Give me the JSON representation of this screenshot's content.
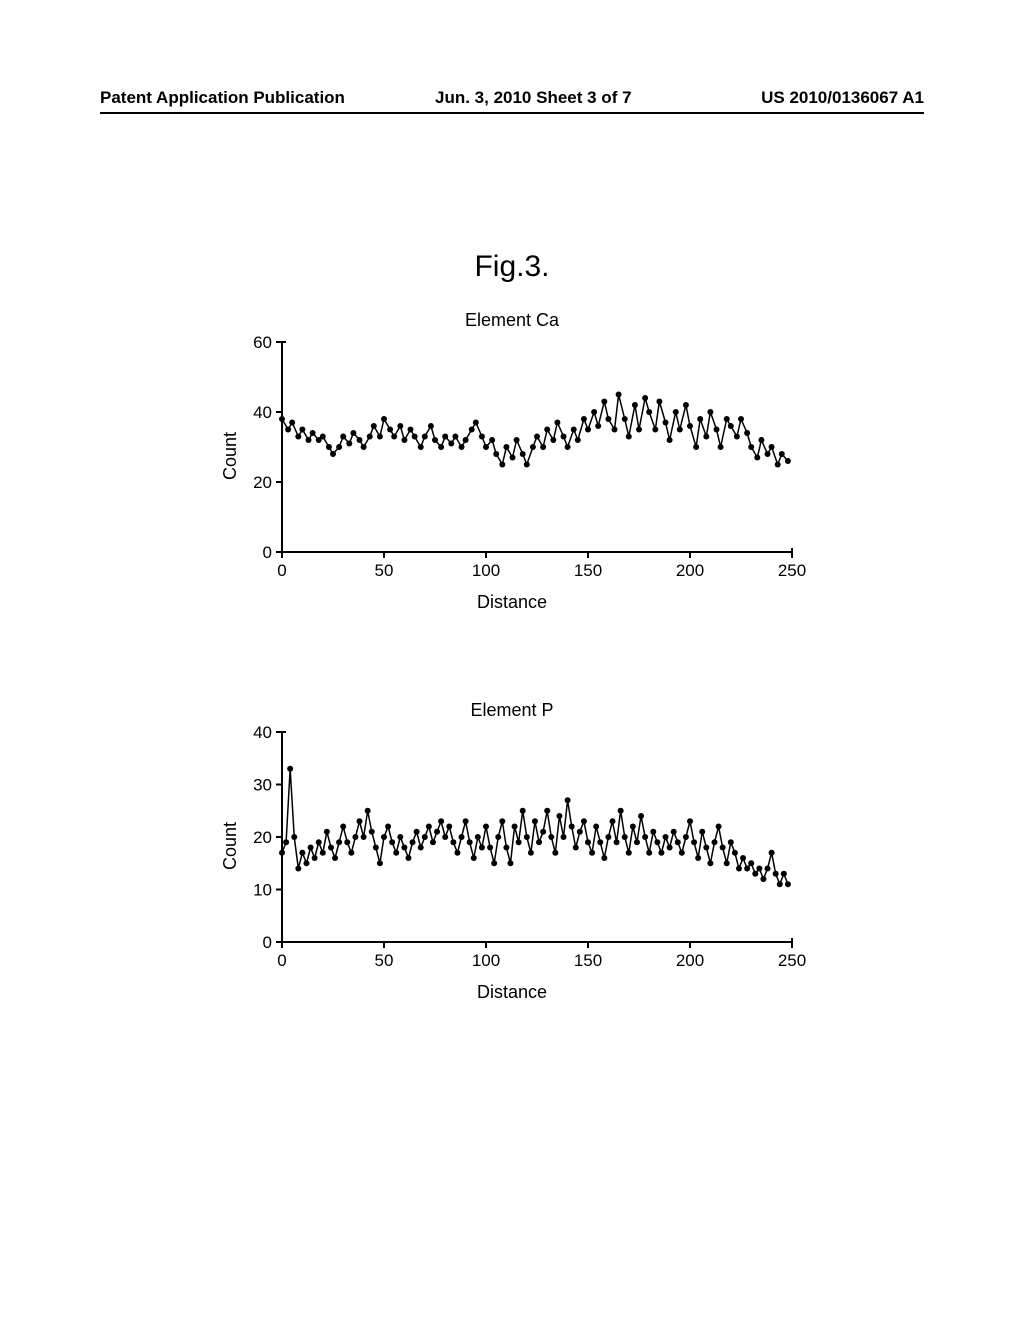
{
  "header": {
    "left": "Patent Application Publication",
    "center": "Jun. 3, 2010  Sheet 3 of 7",
    "right": "US 2010/0136067 A1"
  },
  "figure_label": "Fig.3.",
  "chart1": {
    "type": "line",
    "title": "Element Ca",
    "xlabel": "Distance",
    "ylabel": "Count",
    "xlim": [
      0,
      250
    ],
    "ylim": [
      0,
      60
    ],
    "xticks": [
      0,
      50,
      100,
      150,
      200,
      250
    ],
    "yticks": [
      0,
      20,
      40,
      60
    ],
    "line_color": "#000000",
    "marker_color": "#000000",
    "line_width": 1.5,
    "marker_size": 3,
    "background_color": "#ffffff",
    "axis_color": "#000000",
    "tick_fontsize": 17,
    "label_fontsize": 18,
    "title_fontsize": 18,
    "data": [
      {
        "x": 0,
        "y": 38
      },
      {
        "x": 3,
        "y": 35
      },
      {
        "x": 5,
        "y": 37
      },
      {
        "x": 8,
        "y": 33
      },
      {
        "x": 10,
        "y": 35
      },
      {
        "x": 13,
        "y": 32
      },
      {
        "x": 15,
        "y": 34
      },
      {
        "x": 18,
        "y": 32
      },
      {
        "x": 20,
        "y": 33
      },
      {
        "x": 23,
        "y": 30
      },
      {
        "x": 25,
        "y": 28
      },
      {
        "x": 28,
        "y": 30
      },
      {
        "x": 30,
        "y": 33
      },
      {
        "x": 33,
        "y": 31
      },
      {
        "x": 35,
        "y": 34
      },
      {
        "x": 38,
        "y": 32
      },
      {
        "x": 40,
        "y": 30
      },
      {
        "x": 43,
        "y": 33
      },
      {
        "x": 45,
        "y": 36
      },
      {
        "x": 48,
        "y": 33
      },
      {
        "x": 50,
        "y": 38
      },
      {
        "x": 53,
        "y": 35
      },
      {
        "x": 55,
        "y": 33
      },
      {
        "x": 58,
        "y": 36
      },
      {
        "x": 60,
        "y": 32
      },
      {
        "x": 63,
        "y": 35
      },
      {
        "x": 65,
        "y": 33
      },
      {
        "x": 68,
        "y": 30
      },
      {
        "x": 70,
        "y": 33
      },
      {
        "x": 73,
        "y": 36
      },
      {
        "x": 75,
        "y": 32
      },
      {
        "x": 78,
        "y": 30
      },
      {
        "x": 80,
        "y": 33
      },
      {
        "x": 83,
        "y": 31
      },
      {
        "x": 85,
        "y": 33
      },
      {
        "x": 88,
        "y": 30
      },
      {
        "x": 90,
        "y": 32
      },
      {
        "x": 93,
        "y": 35
      },
      {
        "x": 95,
        "y": 37
      },
      {
        "x": 98,
        "y": 33
      },
      {
        "x": 100,
        "y": 30
      },
      {
        "x": 103,
        "y": 32
      },
      {
        "x": 105,
        "y": 28
      },
      {
        "x": 108,
        "y": 25
      },
      {
        "x": 110,
        "y": 30
      },
      {
        "x": 113,
        "y": 27
      },
      {
        "x": 115,
        "y": 32
      },
      {
        "x": 118,
        "y": 28
      },
      {
        "x": 120,
        "y": 25
      },
      {
        "x": 123,
        "y": 30
      },
      {
        "x": 125,
        "y": 33
      },
      {
        "x": 128,
        "y": 30
      },
      {
        "x": 130,
        "y": 35
      },
      {
        "x": 133,
        "y": 32
      },
      {
        "x": 135,
        "y": 37
      },
      {
        "x": 138,
        "y": 33
      },
      {
        "x": 140,
        "y": 30
      },
      {
        "x": 143,
        "y": 35
      },
      {
        "x": 145,
        "y": 32
      },
      {
        "x": 148,
        "y": 38
      },
      {
        "x": 150,
        "y": 35
      },
      {
        "x": 153,
        "y": 40
      },
      {
        "x": 155,
        "y": 36
      },
      {
        "x": 158,
        "y": 43
      },
      {
        "x": 160,
        "y": 38
      },
      {
        "x": 163,
        "y": 35
      },
      {
        "x": 165,
        "y": 45
      },
      {
        "x": 168,
        "y": 38
      },
      {
        "x": 170,
        "y": 33
      },
      {
        "x": 173,
        "y": 42
      },
      {
        "x": 175,
        "y": 35
      },
      {
        "x": 178,
        "y": 44
      },
      {
        "x": 180,
        "y": 40
      },
      {
        "x": 183,
        "y": 35
      },
      {
        "x": 185,
        "y": 43
      },
      {
        "x": 188,
        "y": 37
      },
      {
        "x": 190,
        "y": 32
      },
      {
        "x": 193,
        "y": 40
      },
      {
        "x": 195,
        "y": 35
      },
      {
        "x": 198,
        "y": 42
      },
      {
        "x": 200,
        "y": 36
      },
      {
        "x": 203,
        "y": 30
      },
      {
        "x": 205,
        "y": 38
      },
      {
        "x": 208,
        "y": 33
      },
      {
        "x": 210,
        "y": 40
      },
      {
        "x": 213,
        "y": 35
      },
      {
        "x": 215,
        "y": 30
      },
      {
        "x": 218,
        "y": 38
      },
      {
        "x": 220,
        "y": 36
      },
      {
        "x": 223,
        "y": 33
      },
      {
        "x": 225,
        "y": 38
      },
      {
        "x": 228,
        "y": 34
      },
      {
        "x": 230,
        "y": 30
      },
      {
        "x": 233,
        "y": 27
      },
      {
        "x": 235,
        "y": 32
      },
      {
        "x": 238,
        "y": 28
      },
      {
        "x": 240,
        "y": 30
      },
      {
        "x": 243,
        "y": 25
      },
      {
        "x": 245,
        "y": 28
      },
      {
        "x": 248,
        "y": 26
      }
    ]
  },
  "chart2": {
    "type": "line",
    "title": "Element P",
    "xlabel": "Distance",
    "ylabel": "Count",
    "xlim": [
      0,
      250
    ],
    "ylim": [
      0,
      40
    ],
    "xticks": [
      0,
      50,
      100,
      150,
      200,
      250
    ],
    "yticks": [
      0,
      10,
      20,
      30,
      40
    ],
    "line_color": "#000000",
    "marker_color": "#000000",
    "line_width": 1.5,
    "marker_size": 3,
    "background_color": "#ffffff",
    "axis_color": "#000000",
    "tick_fontsize": 17,
    "label_fontsize": 18,
    "title_fontsize": 18,
    "data": [
      {
        "x": 0,
        "y": 17
      },
      {
        "x": 2,
        "y": 19
      },
      {
        "x": 4,
        "y": 33
      },
      {
        "x": 6,
        "y": 20
      },
      {
        "x": 8,
        "y": 14
      },
      {
        "x": 10,
        "y": 17
      },
      {
        "x": 12,
        "y": 15
      },
      {
        "x": 14,
        "y": 18
      },
      {
        "x": 16,
        "y": 16
      },
      {
        "x": 18,
        "y": 19
      },
      {
        "x": 20,
        "y": 17
      },
      {
        "x": 22,
        "y": 21
      },
      {
        "x": 24,
        "y": 18
      },
      {
        "x": 26,
        "y": 16
      },
      {
        "x": 28,
        "y": 19
      },
      {
        "x": 30,
        "y": 22
      },
      {
        "x": 32,
        "y": 19
      },
      {
        "x": 34,
        "y": 17
      },
      {
        "x": 36,
        "y": 20
      },
      {
        "x": 38,
        "y": 23
      },
      {
        "x": 40,
        "y": 20
      },
      {
        "x": 42,
        "y": 25
      },
      {
        "x": 44,
        "y": 21
      },
      {
        "x": 46,
        "y": 18
      },
      {
        "x": 48,
        "y": 15
      },
      {
        "x": 50,
        "y": 20
      },
      {
        "x": 52,
        "y": 22
      },
      {
        "x": 54,
        "y": 19
      },
      {
        "x": 56,
        "y": 17
      },
      {
        "x": 58,
        "y": 20
      },
      {
        "x": 60,
        "y": 18
      },
      {
        "x": 62,
        "y": 16
      },
      {
        "x": 64,
        "y": 19
      },
      {
        "x": 66,
        "y": 21
      },
      {
        "x": 68,
        "y": 18
      },
      {
        "x": 70,
        "y": 20
      },
      {
        "x": 72,
        "y": 22
      },
      {
        "x": 74,
        "y": 19
      },
      {
        "x": 76,
        "y": 21
      },
      {
        "x": 78,
        "y": 23
      },
      {
        "x": 80,
        "y": 20
      },
      {
        "x": 82,
        "y": 22
      },
      {
        "x": 84,
        "y": 19
      },
      {
        "x": 86,
        "y": 17
      },
      {
        "x": 88,
        "y": 20
      },
      {
        "x": 90,
        "y": 23
      },
      {
        "x": 92,
        "y": 19
      },
      {
        "x": 94,
        "y": 16
      },
      {
        "x": 96,
        "y": 20
      },
      {
        "x": 98,
        "y": 18
      },
      {
        "x": 100,
        "y": 22
      },
      {
        "x": 102,
        "y": 18
      },
      {
        "x": 104,
        "y": 15
      },
      {
        "x": 106,
        "y": 20
      },
      {
        "x": 108,
        "y": 23
      },
      {
        "x": 110,
        "y": 18
      },
      {
        "x": 112,
        "y": 15
      },
      {
        "x": 114,
        "y": 22
      },
      {
        "x": 116,
        "y": 19
      },
      {
        "x": 118,
        "y": 25
      },
      {
        "x": 120,
        "y": 20
      },
      {
        "x": 122,
        "y": 17
      },
      {
        "x": 124,
        "y": 23
      },
      {
        "x": 126,
        "y": 19
      },
      {
        "x": 128,
        "y": 21
      },
      {
        "x": 130,
        "y": 25
      },
      {
        "x": 132,
        "y": 20
      },
      {
        "x": 134,
        "y": 17
      },
      {
        "x": 136,
        "y": 24
      },
      {
        "x": 138,
        "y": 20
      },
      {
        "x": 140,
        "y": 27
      },
      {
        "x": 142,
        "y": 22
      },
      {
        "x": 144,
        "y": 18
      },
      {
        "x": 146,
        "y": 21
      },
      {
        "x": 148,
        "y": 23
      },
      {
        "x": 150,
        "y": 19
      },
      {
        "x": 152,
        "y": 17
      },
      {
        "x": 154,
        "y": 22
      },
      {
        "x": 156,
        "y": 19
      },
      {
        "x": 158,
        "y": 16
      },
      {
        "x": 160,
        "y": 20
      },
      {
        "x": 162,
        "y": 23
      },
      {
        "x": 164,
        "y": 19
      },
      {
        "x": 166,
        "y": 25
      },
      {
        "x": 168,
        "y": 20
      },
      {
        "x": 170,
        "y": 17
      },
      {
        "x": 172,
        "y": 22
      },
      {
        "x": 174,
        "y": 19
      },
      {
        "x": 176,
        "y": 24
      },
      {
        "x": 178,
        "y": 20
      },
      {
        "x": 180,
        "y": 17
      },
      {
        "x": 182,
        "y": 21
      },
      {
        "x": 184,
        "y": 19
      },
      {
        "x": 186,
        "y": 17
      },
      {
        "x": 188,
        "y": 20
      },
      {
        "x": 190,
        "y": 18
      },
      {
        "x": 192,
        "y": 21
      },
      {
        "x": 194,
        "y": 19
      },
      {
        "x": 196,
        "y": 17
      },
      {
        "x": 198,
        "y": 20
      },
      {
        "x": 200,
        "y": 23
      },
      {
        "x": 202,
        "y": 19
      },
      {
        "x": 204,
        "y": 16
      },
      {
        "x": 206,
        "y": 21
      },
      {
        "x": 208,
        "y": 18
      },
      {
        "x": 210,
        "y": 15
      },
      {
        "x": 212,
        "y": 19
      },
      {
        "x": 214,
        "y": 22
      },
      {
        "x": 216,
        "y": 18
      },
      {
        "x": 218,
        "y": 15
      },
      {
        "x": 220,
        "y": 19
      },
      {
        "x": 222,
        "y": 17
      },
      {
        "x": 224,
        "y": 14
      },
      {
        "x": 226,
        "y": 16
      },
      {
        "x": 228,
        "y": 14
      },
      {
        "x": 230,
        "y": 15
      },
      {
        "x": 232,
        "y": 13
      },
      {
        "x": 234,
        "y": 14
      },
      {
        "x": 236,
        "y": 12
      },
      {
        "x": 238,
        "y": 14
      },
      {
        "x": 240,
        "y": 17
      },
      {
        "x": 242,
        "y": 13
      },
      {
        "x": 244,
        "y": 11
      },
      {
        "x": 246,
        "y": 13
      },
      {
        "x": 248,
        "y": 11
      }
    ]
  }
}
